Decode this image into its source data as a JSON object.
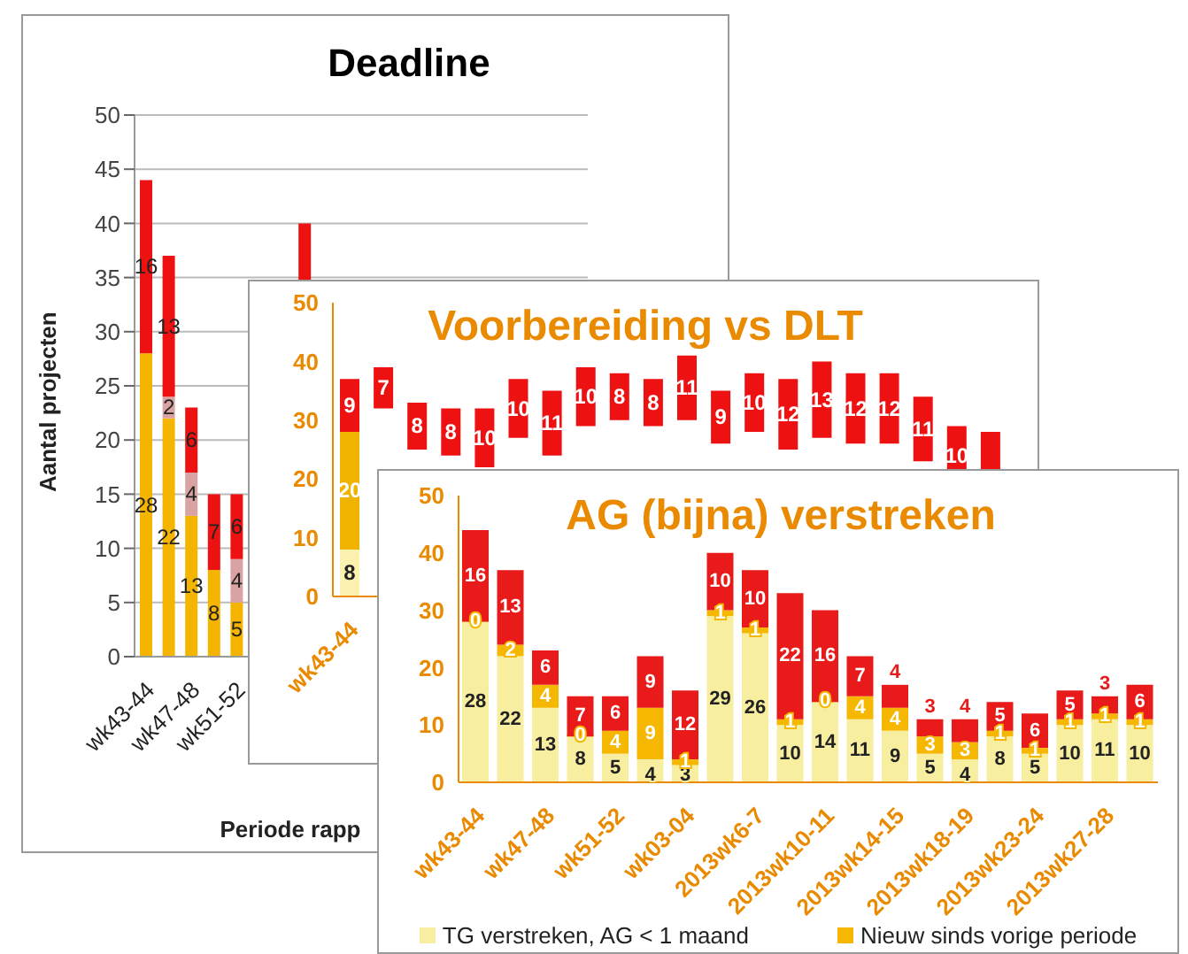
{
  "chart_data": [
    {
      "type": "bar",
      "title": "Deadline",
      "ylabel": "Aantal projecten",
      "xlabel": "Periode rapp",
      "stacked": true,
      "grid": "y",
      "legend": false,
      "categories": [
        "wk43-44",
        null,
        "wk47-48",
        null,
        "wk51-52",
        null,
        null,
        null,
        null,
        null,
        null,
        null,
        null,
        null,
        null,
        null,
        null,
        null,
        null,
        null
      ],
      "ylim": [
        0,
        50
      ],
      "yticks": [
        0,
        5,
        10,
        15,
        20,
        25,
        30,
        35,
        40,
        45,
        50
      ],
      "series": [
        {
          "color": "#f5b400",
          "values": [
            28,
            22,
            13,
            8,
            5,
            null,
            null,
            null,
            null,
            null,
            null,
            null,
            null,
            null,
            null,
            null,
            null,
            null,
            null,
            null
          ],
          "value_labels": [
            "28",
            "22",
            "13",
            "8",
            "5",
            null,
            null,
            null,
            null,
            null,
            null,
            null,
            null,
            null,
            null,
            null,
            null,
            null,
            null,
            null
          ]
        },
        {
          "color": "#d9a3a3",
          "values": [
            null,
            2,
            4,
            null,
            4,
            null,
            null,
            null,
            null,
            null,
            null,
            null,
            null,
            null,
            null,
            null,
            null,
            null,
            null,
            null
          ],
          "value_labels": [
            null,
            "2",
            "4",
            null,
            "4",
            null,
            null,
            null,
            null,
            null,
            null,
            null,
            null,
            null,
            null,
            null,
            null,
            null,
            null,
            null
          ]
        },
        {
          "color": "#ee1111",
          "values": [
            16,
            13,
            6,
            7,
            6,
            null,
            null,
            10,
            null,
            null,
            null,
            null,
            null,
            null,
            null,
            null,
            null,
            null,
            null,
            null
          ],
          "base": [
            28,
            24,
            17,
            8,
            9,
            null,
            null,
            30,
            null,
            null,
            null,
            null,
            null,
            null,
            null,
            null,
            null,
            null,
            null,
            null
          ],
          "value_labels": [
            "16",
            "13",
            "6",
            "7",
            "6",
            null,
            null,
            null,
            null,
            null,
            null,
            null,
            null,
            null,
            null,
            null,
            null,
            null,
            null,
            null
          ]
        }
      ]
    },
    {
      "type": "bar",
      "title": "Voorbereiding vs DLT",
      "stacked": true,
      "grid": false,
      "legend": false,
      "categories": [
        "wk43-44",
        null,
        null,
        null,
        null,
        null,
        null,
        null,
        null,
        null,
        null,
        null,
        null,
        null,
        null,
        null,
        null,
        null,
        null,
        null
      ],
      "ylim": [
        0,
        50
      ],
      "yticks": [
        0,
        10,
        20,
        30,
        40,
        50
      ],
      "series": [
        {
          "color": "#fbf2b0",
          "values": [
            8,
            null,
            null,
            null,
            null,
            null,
            null,
            null,
            null,
            null,
            null,
            null,
            null,
            null,
            null,
            null,
            null,
            null,
            null,
            null
          ],
          "value_labels": [
            "8",
            null,
            null,
            null,
            null,
            null,
            null,
            null,
            null,
            null,
            null,
            null,
            null,
            null,
            null,
            null,
            null,
            null,
            null,
            null
          ]
        },
        {
          "color": "#f0b400",
          "values": [
            20,
            null,
            null,
            null,
            null,
            null,
            null,
            null,
            null,
            null,
            null,
            null,
            null,
            null,
            null,
            null,
            null,
            null,
            null,
            null
          ],
          "value_labels": [
            "20",
            null,
            null,
            null,
            null,
            null,
            null,
            null,
            null,
            null,
            null,
            null,
            null,
            null,
            null,
            null,
            null,
            null,
            null,
            null
          ]
        },
        {
          "color": "#ee1111",
          "values": [
            9,
            7,
            8,
            8,
            10,
            10,
            11,
            10,
            8,
            8,
            11,
            9,
            10,
            12,
            13,
            12,
            12,
            11,
            10,
            12
          ],
          "base": [
            28,
            32,
            25,
            24,
            22,
            27,
            24,
            29,
            30,
            29,
            30,
            26,
            28,
            25,
            27,
            26,
            26,
            23,
            19,
            16
          ],
          "value_labels": [
            "9",
            "7",
            "8",
            "8",
            "10",
            "10",
            "11",
            "10",
            "8",
            "8",
            "11",
            "9",
            "10",
            "12",
            "13",
            "12",
            "12",
            "11",
            "10",
            null
          ]
        }
      ]
    },
    {
      "type": "bar",
      "title": "AG (bijna) verstreken",
      "stacked": true,
      "data_labels": true,
      "grid": false,
      "legend": "bottom",
      "categories": [
        "wk43-44",
        null,
        "wk47-48",
        null,
        "wk51-52",
        null,
        "wk03-04",
        null,
        "2013wk6-7",
        null,
        "2013wk10-11",
        null,
        "2013wk14-15",
        null,
        "2013wk18-19",
        null,
        "2013wk23-24",
        null,
        "2013wk27-28",
        null
      ],
      "ylim": [
        0,
        50
      ],
      "yticks": [
        0,
        10,
        20,
        30,
        40,
        50
      ],
      "series": [
        {
          "name": "TG verstreken, AG < 1 maand",
          "color": "#f8eea0",
          "values": [
            28,
            22,
            13,
            8,
            5,
            4,
            3,
            29,
            26,
            10,
            14,
            11,
            9,
            5,
            4,
            8,
            5,
            10,
            11,
            10
          ]
        },
        {
          "name": "Nieuw sinds vorige periode",
          "color": "#f5b700",
          "values": [
            0,
            2,
            4,
            0,
            4,
            9,
            1,
            1,
            1,
            1,
            0,
            4,
            4,
            3,
            3,
            1,
            1,
            1,
            1,
            1
          ]
        },
        {
          "color": "#e81a1a",
          "values": [
            16,
            13,
            6,
            7,
            6,
            9,
            12,
            10,
            10,
            22,
            16,
            7,
            4,
            3,
            4,
            5,
            6,
            5,
            3,
            6
          ]
        }
      ]
    }
  ]
}
